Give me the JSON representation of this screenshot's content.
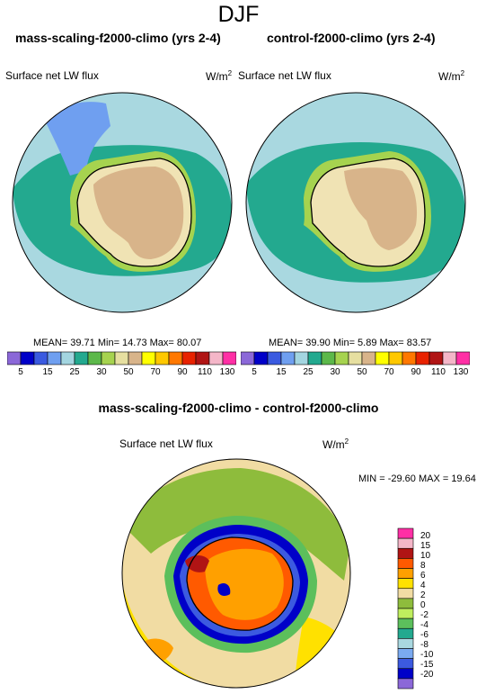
{
  "season": "DJF",
  "panel_left": {
    "title": "mass-scaling-f2000-climo (yrs 2-4)",
    "variable": "Surface net LW flux",
    "units_base": "W/m",
    "units_exp": "2",
    "stats": "MEAN=  39.71  Min=  14.73  Max=  80.07"
  },
  "panel_right": {
    "title": "control-f2000-climo (yrs 2-4)",
    "variable": "Surface net LW flux",
    "units_base": "W/m",
    "units_exp": "2",
    "stats": "MEAN=  39.90  Min=   5.89  Max=  83.57"
  },
  "panel_diff": {
    "title": "mass-scaling-f2000-climo - control-f2000-climo",
    "variable": "Surface net LW flux",
    "units_base": "W/m",
    "units_exp": "2",
    "stats": "MIN = -29.60  MAX =  19.64"
  },
  "colorbar_top": {
    "colors": [
      "#8b68d8",
      "#0000c8",
      "#3a5ae0",
      "#6f9ff0",
      "#a3d5e0",
      "#23a98f",
      "#5cb84a",
      "#a6d34f",
      "#e6dfa0",
      "#d8b48a",
      "#ffff00",
      "#ffc800",
      "#ff7800",
      "#e82200",
      "#b01414",
      "#f4b6c8",
      "#ff2fa5"
    ],
    "labels": [
      "5",
      "15",
      "25",
      "30",
      "50",
      "70",
      "90",
      "110",
      "130"
    ]
  },
  "colorbar_diff": {
    "colors": [
      "#ff2fa5",
      "#f4b6c8",
      "#b01414",
      "#ff5a00",
      "#ffa000",
      "#ffe100",
      "#f1dca3",
      "#8ebc3c",
      "#bfee5e",
      "#5cbf5c",
      "#23a98f",
      "#a9d8e0",
      "#7aaaf0",
      "#3c5ae0",
      "#0000c8",
      "#8b68d8"
    ],
    "labels": [
      "20",
      "15",
      "10",
      "8",
      "6",
      "4",
      "2",
      "0",
      "-2",
      "-4",
      "-6",
      "-8",
      "-10",
      "-15",
      "-20"
    ]
  }
}
